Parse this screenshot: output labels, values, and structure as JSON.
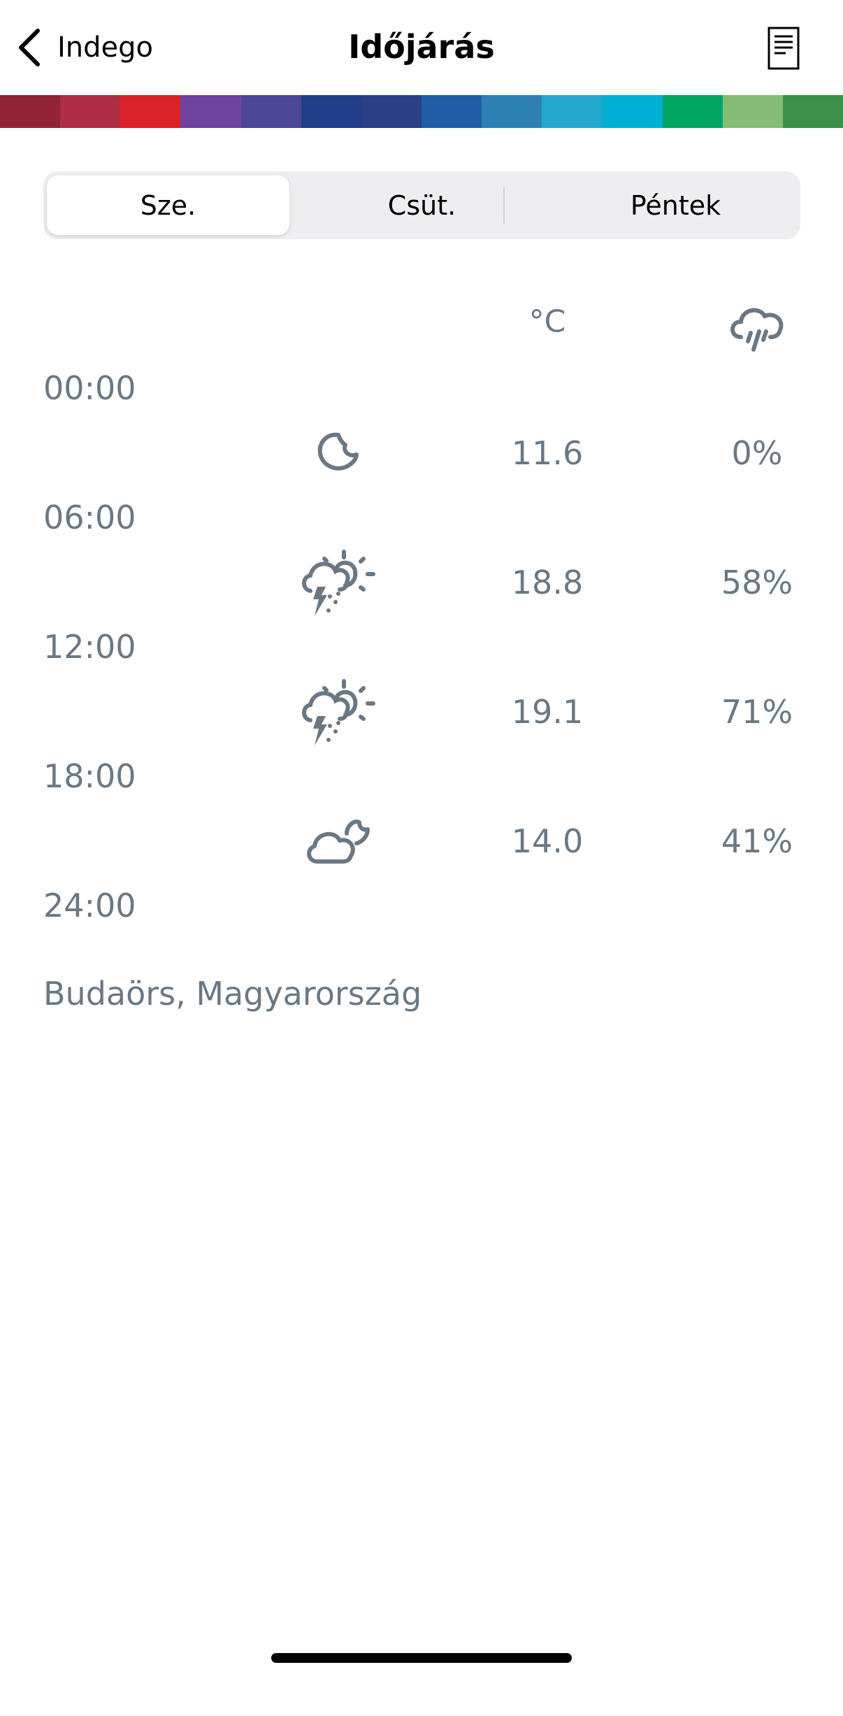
{
  "nav": {
    "back_label": "Indego",
    "title": "Időjárás",
    "right_icon": "document-icon"
  },
  "band_colors": [
    "#942236",
    "#ae2d44",
    "#db2228",
    "#6e44a0",
    "#4c4696",
    "#1f3f8a",
    "#2a3f88",
    "#1f5ea6",
    "#2c80b4",
    "#22a8cc",
    "#00b0d4",
    "#00a564",
    "#84bc74",
    "#3a8f4a"
  ],
  "tabs": [
    {
      "label": "Sze.",
      "selected": true
    },
    {
      "label": "Csüt.",
      "selected": false
    },
    {
      "label": "Péntek",
      "selected": false
    }
  ],
  "header": {
    "temp_unit": "°C",
    "precip_icon": "rain-cloud-icon"
  },
  "times": [
    "00:00",
    "06:00",
    "12:00",
    "18:00",
    "24:00"
  ],
  "rows": [
    {
      "icon": "moon-icon",
      "temp": "11.6",
      "precip": "0%"
    },
    {
      "icon": "thunderstorm-sun-icon",
      "temp": "18.8",
      "precip": "58%"
    },
    {
      "icon": "thunderstorm-sun-icon",
      "temp": "19.1",
      "precip": "71%"
    },
    {
      "icon": "cloud-moon-icon",
      "temp": "14.0",
      "precip": "41%"
    }
  ],
  "location": "Budaörs, Magyarország",
  "colors": {
    "text": "#6a7884",
    "segment_bg": "#eeeef0"
  }
}
